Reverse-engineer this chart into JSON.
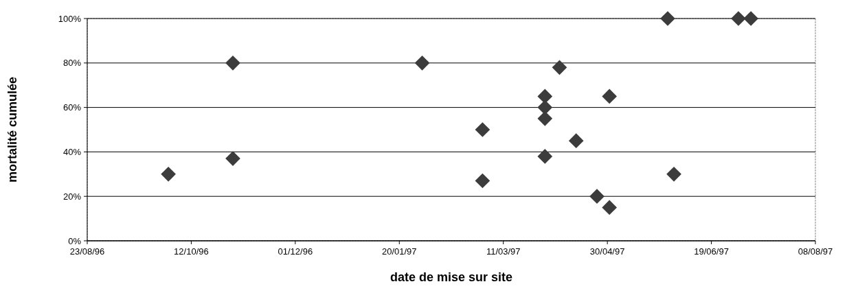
{
  "chart_data": {
    "type": "scatter",
    "xlabel": "date de mise sur site",
    "ylabel": "mortalité cumulée",
    "x": [
      "1996-10-01",
      "1996-11-01",
      "1996-11-01",
      "1997-01-31",
      "1997-03-01",
      "1997-03-01",
      "1997-03-31",
      "1997-03-31",
      "1997-03-31",
      "1997-03-31",
      "1997-04-07",
      "1997-04-15",
      "1997-04-25",
      "1997-05-01",
      "1997-05-01",
      "1997-05-29",
      "1997-06-01",
      "1997-07-02",
      "1997-07-08"
    ],
    "values": [
      30,
      80,
      37,
      80,
      50,
      27,
      65,
      60,
      55,
      38,
      78,
      45,
      20,
      15,
      65,
      100,
      30,
      100,
      100
    ],
    "color": "#3c3c3c",
    "marker": "diamond",
    "grid": "y",
    "xlim": [
      "1996-08-23",
      "1997-08-08"
    ],
    "xticks": [
      {
        "value": "1996-08-23",
        "label": "23/08/96"
      },
      {
        "value": "1996-10-12",
        "label": "12/10/96"
      },
      {
        "value": "1996-12-01",
        "label": "01/12/96"
      },
      {
        "value": "1997-01-20",
        "label": "20/01/97"
      },
      {
        "value": "1997-03-11",
        "label": "11/03/97"
      },
      {
        "value": "1997-04-30",
        "label": "30/04/97"
      },
      {
        "value": "1997-06-19",
        "label": "19/06/97"
      },
      {
        "value": "1997-08-08",
        "label": "08/08/97"
      }
    ],
    "ylim": [
      0,
      100
    ],
    "yticks": [
      {
        "value": 0,
        "label": "0%"
      },
      {
        "value": 20,
        "label": "20%"
      },
      {
        "value": 40,
        "label": "40%"
      },
      {
        "value": 60,
        "label": "60%"
      },
      {
        "value": 80,
        "label": "80%"
      },
      {
        "value": 100,
        "label": "100%"
      }
    ]
  }
}
